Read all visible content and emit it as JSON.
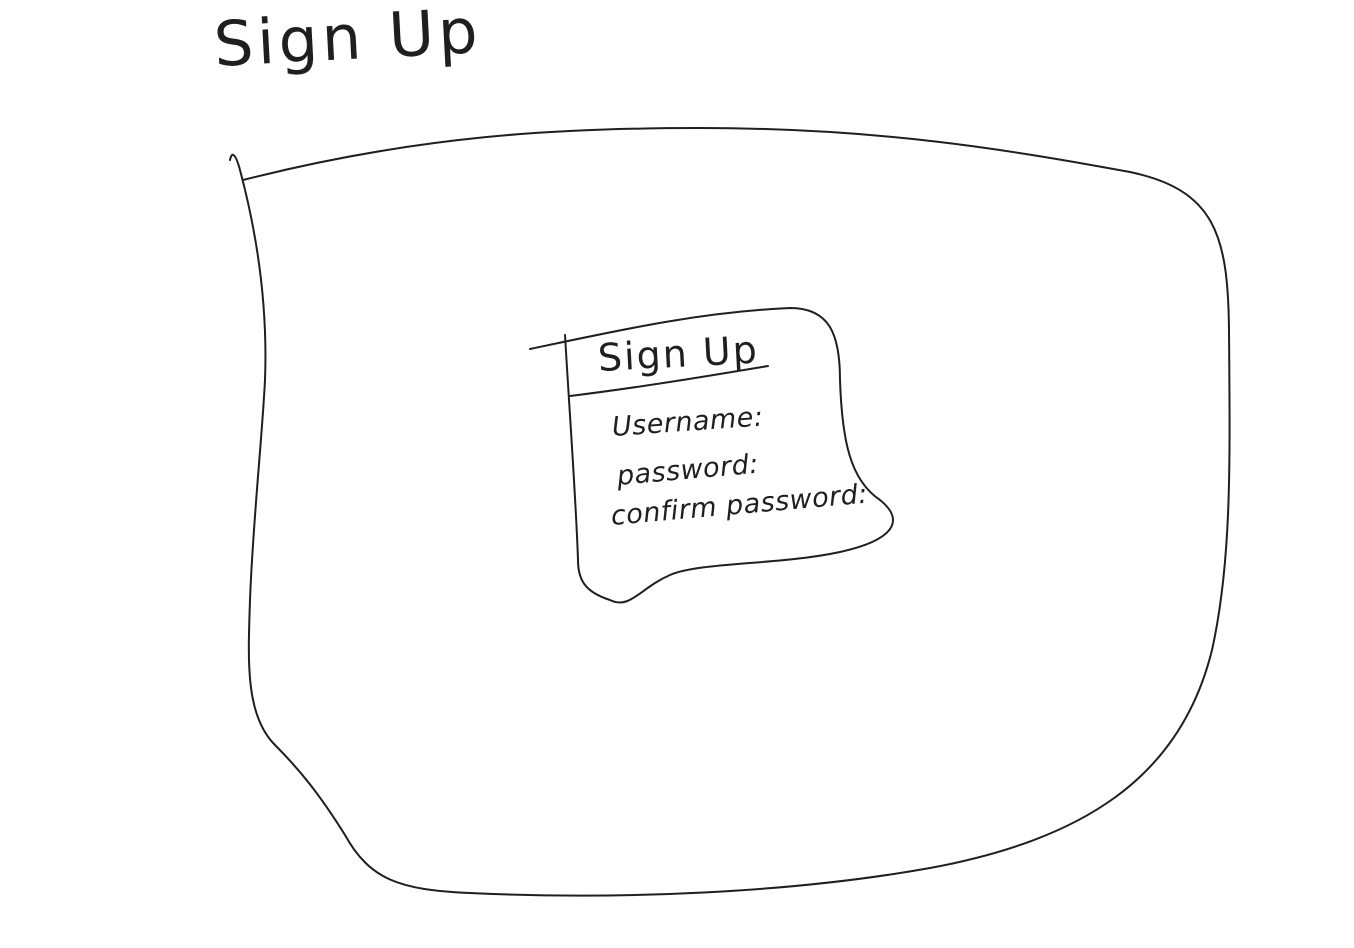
{
  "page": {
    "title": "Sign Up"
  },
  "modal": {
    "title": "Sign Up",
    "fields": [
      {
        "label": "Username:"
      },
      {
        "label": "password:"
      },
      {
        "label": "confirm password:"
      }
    ]
  },
  "colors": {
    "ink": "#1f1f1f",
    "paper": "#ffffff"
  }
}
